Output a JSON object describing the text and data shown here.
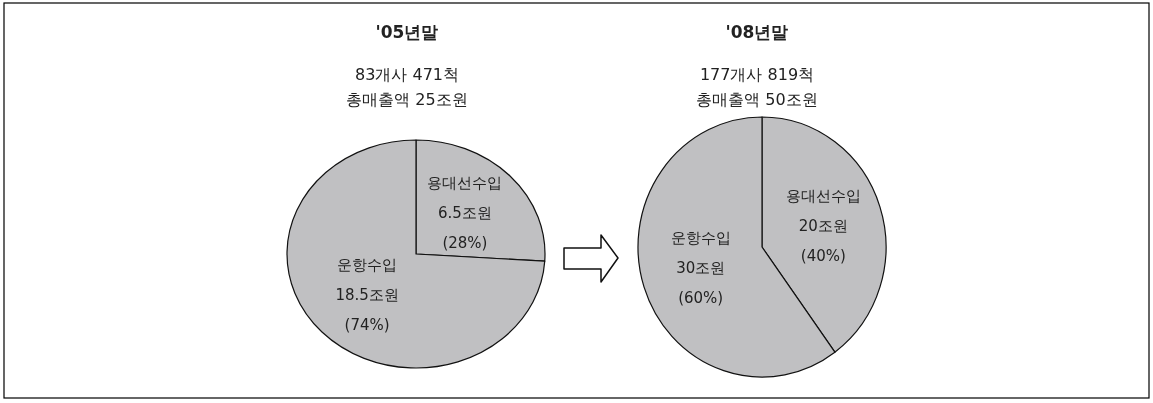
{
  "chart_data": [
    {
      "type": "pie",
      "title": "'05년말",
      "subtitle": "83개사 471척\n총매출액 25조원",
      "categories": [
        "용대선수입",
        "운항수입"
      ],
      "values": [
        6.5,
        18.5
      ],
      "colors": [
        "#c0c0c2",
        "#c0c0c2"
      ],
      "value_labels": [
        "6.5조원\n(28%)",
        "18.5조원\n(74%)"
      ],
      "legend": false
    },
    {
      "type": "pie",
      "title": "'08년말",
      "subtitle": "177개사 819척\n총매출액 50조원",
      "categories": [
        "용대선수입",
        "운항수입"
      ],
      "values": [
        20,
        30
      ],
      "colors": [
        "#c0c0c2",
        "#c0c0c2"
      ],
      "value_labels": [
        "20조원\n(40%)",
        "30조원\n(60%)"
      ],
      "legend": false
    }
  ]
}
